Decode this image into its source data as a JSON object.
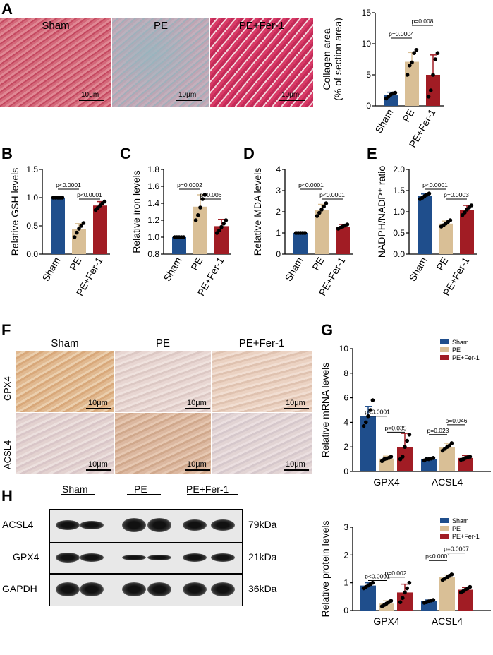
{
  "panels": {
    "A": "A",
    "B": "B",
    "C": "C",
    "D": "D",
    "E": "E",
    "F": "F",
    "G": "G",
    "H": "H"
  },
  "groups": [
    "Sham",
    "PE",
    "PE+Fer-1"
  ],
  "colors": {
    "sham": "#1f4e8c",
    "pe": "#d9bf96",
    "fer": "#a11c24"
  },
  "panelA": {
    "titles": [
      "Sham",
      "PE",
      "PE+Fer-1"
    ],
    "scale": "10μm"
  },
  "panelF": {
    "titles": [
      "Sham",
      "PE",
      "PE+Fer-1"
    ],
    "rows": [
      "GPX4",
      "ACSL4"
    ],
    "scale": "10μm"
  },
  "panelH": {
    "groups": [
      "Sham",
      "PE",
      "PE+Fer-1"
    ],
    "rows": [
      {
        "name": "ACSL4",
        "kda": "79kDa"
      },
      {
        "name": "GPX4",
        "kda": "21kDa"
      },
      {
        "name": "GAPDH",
        "kda": "36kDa"
      }
    ]
  },
  "chart_data": [
    {
      "id": "A",
      "type": "bar",
      "categories": [
        "Sham",
        "PE",
        "PE+Fer-1"
      ],
      "values": [
        1.7,
        7.1,
        5.0
      ],
      "errors": [
        0.5,
        1.5,
        3.2
      ],
      "points": [
        [
          1.2,
          1.5,
          1.8,
          2.0,
          2.1
        ],
        [
          5.0,
          6.5,
          7.0,
          8.5,
          9.0
        ],
        [
          1.5,
          2.5,
          5.0,
          7.5,
          8.5
        ]
      ],
      "ylabel": [
        "Collagen area",
        "(% of section area)"
      ],
      "ylim": [
        0,
        15
      ],
      "yticks": [
        0,
        5,
        10,
        15
      ],
      "brackets": [
        {
          "from": 0,
          "to": 1,
          "label": "p=0.0004"
        },
        {
          "from": 1,
          "to": 2,
          "label": "p=0.008"
        }
      ]
    },
    {
      "id": "B",
      "type": "bar",
      "categories": [
        "Sham",
        "PE",
        "PE+Fer-1"
      ],
      "values": [
        1.0,
        0.44,
        0.86
      ],
      "errors": [
        0.0,
        0.1,
        0.07
      ],
      "points": [
        [
          1,
          1,
          1,
          1,
          1
        ],
        [
          0.3,
          0.38,
          0.45,
          0.5,
          0.55
        ],
        [
          0.78,
          0.82,
          0.86,
          0.9,
          0.93
        ]
      ],
      "ylabel": [
        "Relative GSH levels"
      ],
      "ylim": [
        0,
        1.5
      ],
      "yticks": [
        0,
        0.5,
        1.0,
        1.5
      ],
      "brackets": [
        {
          "from": 0,
          "to": 1,
          "label": "p<0.0001"
        },
        {
          "from": 1,
          "to": 2,
          "label": "p<0.0001"
        }
      ]
    },
    {
      "id": "C",
      "type": "bar",
      "categories": [
        "Sham",
        "PE",
        "PE+Fer-1"
      ],
      "values": [
        1.0,
        1.36,
        1.13
      ],
      "errors": [
        0.0,
        0.14,
        0.08
      ],
      "points": [
        [
          1,
          1,
          1,
          1,
          1
        ],
        [
          1.2,
          1.26,
          1.35,
          1.45,
          1.5
        ],
        [
          1.05,
          1.08,
          1.12,
          1.16,
          1.2
        ]
      ],
      "ylabel": [
        "Relative iron levels"
      ],
      "ylim": [
        0.8,
        1.8
      ],
      "yticks": [
        0.8,
        1.0,
        1.2,
        1.4,
        1.6,
        1.8
      ],
      "brackets": [
        {
          "from": 0,
          "to": 1,
          "label": "p=0.0002"
        },
        {
          "from": 1,
          "to": 2,
          "label": "p=0.006"
        }
      ]
    },
    {
      "id": "D",
      "type": "bar",
      "categories": [
        "Sham",
        "PE",
        "PE+Fer-1"
      ],
      "values": [
        1.0,
        2.1,
        1.3
      ],
      "errors": [
        0.0,
        0.25,
        0.1
      ],
      "points": [
        [
          1,
          1,
          1,
          1,
          1
        ],
        [
          1.8,
          1.95,
          2.1,
          2.25,
          2.4
        ],
        [
          1.2,
          1.25,
          1.3,
          1.35,
          1.4
        ]
      ],
      "ylabel": [
        "Relative MDA levels"
      ],
      "ylim": [
        0,
        4
      ],
      "yticks": [
        0,
        1,
        2,
        3,
        4
      ],
      "brackets": [
        {
          "from": 0,
          "to": 1,
          "label": "p<0.0001"
        },
        {
          "from": 1,
          "to": 2,
          "label": "p<0.0001"
        }
      ]
    },
    {
      "id": "E",
      "type": "bar",
      "categories": [
        "Sham",
        "PE",
        "PE+Fer-1"
      ],
      "values": [
        1.37,
        0.72,
        1.05
      ],
      "errors": [
        0.05,
        0.06,
        0.1
      ],
      "points": [
        [
          1.3,
          1.33,
          1.37,
          1.4,
          1.43
        ],
        [
          0.65,
          0.68,
          0.72,
          0.76,
          0.8
        ],
        [
          0.92,
          0.98,
          1.05,
          1.1,
          1.15
        ]
      ],
      "ylabel": [
        "NADPH/NADP⁺ ratio"
      ],
      "ylim": [
        0,
        2.0
      ],
      "yticks": [
        0,
        0.5,
        1.0,
        1.5,
        2.0
      ],
      "brackets": [
        {
          "from": 0,
          "to": 1,
          "label": "p<0.0001"
        },
        {
          "from": 1,
          "to": 2,
          "label": "p=0.0003"
        }
      ]
    },
    {
      "id": "G",
      "type": "grouped-bar",
      "categories": [
        "GPX4",
        "ACSL4"
      ],
      "series": [
        {
          "name": "Sham",
          "values": [
            4.5,
            1.0
          ],
          "errors": [
            0.8,
            0.1
          ],
          "points": [
            [
              3.7,
              4.0,
              4.5,
              5.0,
              5.8
            ],
            [
              0.9,
              1.0,
              1.0,
              1.05,
              1.1
            ]
          ]
        },
        {
          "name": "PE",
          "values": [
            1.05,
            2.0
          ],
          "errors": [
            0.2,
            0.3
          ],
          "points": [
            [
              0.85,
              1.0,
              1.05,
              1.1,
              1.2
            ],
            [
              1.7,
              1.85,
              2.0,
              2.1,
              2.3
            ]
          ]
        },
        {
          "name": "PE+Fer-1",
          "values": [
            2.0,
            1.1
          ],
          "errors": [
            1.1,
            0.2
          ],
          "points": [
            [
              1.0,
              1.2,
              2.0,
              2.5,
              3.0
            ],
            [
              0.95,
              1.0,
              1.1,
              1.15,
              1.2
            ]
          ]
        }
      ],
      "ylabel": [
        "Relative mRNA levels"
      ],
      "ylim": [
        0,
        10
      ],
      "yticks": [
        0,
        2,
        4,
        6,
        8,
        10
      ],
      "brackets": [
        {
          "group": 0,
          "from": 0,
          "to": 1,
          "label": "p<0.0001"
        },
        {
          "group": 0,
          "from": 1,
          "to": 2,
          "label": "p=0.035"
        },
        {
          "group": 1,
          "from": 0,
          "to": 1,
          "label": "p=0.023"
        },
        {
          "group": 1,
          "from": 1,
          "to": 2,
          "label": "p=0.046"
        }
      ],
      "legend": "top-right"
    },
    {
      "id": "H",
      "type": "grouped-bar",
      "categories": [
        "GPX4",
        "ACSL4"
      ],
      "series": [
        {
          "name": "Sham",
          "values": [
            0.9,
            0.33
          ],
          "errors": [
            0.1,
            0.05
          ],
          "points": [
            [
              0.8,
              0.85,
              0.9,
              0.95,
              1.0
            ],
            [
              0.28,
              0.3,
              0.33,
              0.36,
              0.38
            ]
          ]
        },
        {
          "name": "PE",
          "values": [
            0.25,
            1.2
          ],
          "errors": [
            0.1,
            0.08
          ],
          "points": [
            [
              0.15,
              0.2,
              0.25,
              0.3,
              0.35
            ],
            [
              1.1,
              1.15,
              1.2,
              1.25,
              1.3
            ]
          ]
        },
        {
          "name": "PE+Fer-1",
          "values": [
            0.65,
            0.75
          ],
          "errors": [
            0.3,
            0.08
          ],
          "points": [
            [
              0.3,
              0.45,
              0.65,
              0.8,
              1.0
            ],
            [
              0.65,
              0.7,
              0.75,
              0.8,
              0.85
            ]
          ]
        }
      ],
      "ylabel": [
        "Relative protein levels"
      ],
      "ylim": [
        0,
        3
      ],
      "yticks": [
        0,
        1,
        2,
        3
      ],
      "brackets": [
        {
          "group": 0,
          "from": 0,
          "to": 1,
          "label": "p<0.0001"
        },
        {
          "group": 0,
          "from": 1,
          "to": 2,
          "label": "p=0.002"
        },
        {
          "group": 1,
          "from": 0,
          "to": 1,
          "label": "p<0.0001"
        },
        {
          "group": 1,
          "from": 1,
          "to": 2,
          "label": "p=0.0007"
        }
      ],
      "legend": "top-right"
    }
  ]
}
